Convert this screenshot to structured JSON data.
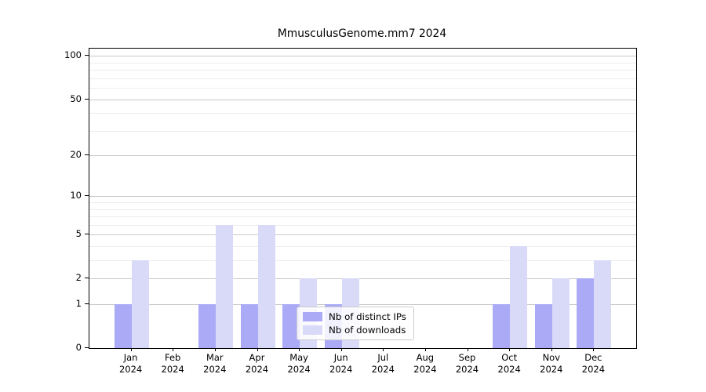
{
  "chart_data": {
    "type": "bar",
    "title": "MmusculusGenome.mm7 2024",
    "categories": [
      {
        "month": "Jan",
        "year": "2024"
      },
      {
        "month": "Feb",
        "year": "2024"
      },
      {
        "month": "Mar",
        "year": "2024"
      },
      {
        "month": "Apr",
        "year": "2024"
      },
      {
        "month": "May",
        "year": "2024"
      },
      {
        "month": "Jun",
        "year": "2024"
      },
      {
        "month": "Jul",
        "year": "2024"
      },
      {
        "month": "Aug",
        "year": "2024"
      },
      {
        "month": "Sep",
        "year": "2024"
      },
      {
        "month": "Oct",
        "year": "2024"
      },
      {
        "month": "Nov",
        "year": "2024"
      },
      {
        "month": "Dec",
        "year": "2024"
      }
    ],
    "series": [
      {
        "name": "Nb of distinct IPs",
        "color": "#aaaaf7",
        "values": [
          1,
          0,
          1,
          1,
          1,
          1,
          0,
          0,
          0,
          1,
          1,
          2
        ]
      },
      {
        "name": "Nb of downloads",
        "color": "#d9d9f8",
        "values": [
          3,
          0,
          6,
          6,
          2,
          2,
          0,
          0,
          0,
          4,
          2,
          3
        ]
      }
    ],
    "y_axis": {
      "scale": "log1p",
      "major_ticks": [
        0,
        1,
        2,
        5,
        10,
        20,
        50,
        100
      ],
      "minor_ticks": [
        3,
        4,
        6,
        7,
        8,
        9,
        30,
        40,
        60,
        70,
        80,
        90
      ],
      "ylim": [
        0,
        112
      ]
    },
    "legend": {
      "position": "lower-center"
    },
    "grid": true,
    "colors": {
      "major_grid": "#c8c8c8",
      "minor_grid": "#ededed",
      "axis": "#000000",
      "text": "#000000",
      "background": "#ffffff"
    }
  }
}
